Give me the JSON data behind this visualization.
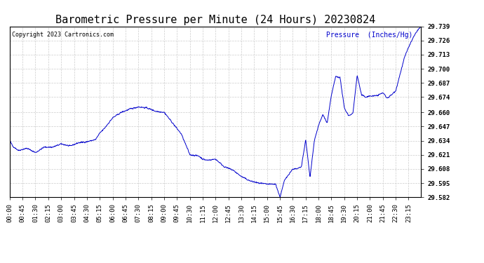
{
  "title": "Barometric Pressure per Minute (24 Hours) 20230824",
  "copyright": "Copyright 2023 Cartronics.com",
  "legend_label": "Pressure  (Inches/Hg)",
  "ylim": [
    29.582,
    29.739
  ],
  "yticks": [
    29.582,
    29.595,
    29.608,
    29.621,
    29.634,
    29.647,
    29.66,
    29.674,
    29.687,
    29.7,
    29.713,
    29.726,
    29.739
  ],
  "line_color": "#0000cc",
  "background_color": "#ffffff",
  "grid_color": "#cccccc",
  "title_fontsize": 11,
  "tick_fontsize": 6.5,
  "x_tick_labels": [
    "00:00",
    "00:45",
    "01:30",
    "02:15",
    "03:00",
    "03:45",
    "04:30",
    "05:15",
    "06:00",
    "06:45",
    "07:30",
    "08:15",
    "09:00",
    "09:45",
    "10:30",
    "11:15",
    "12:00",
    "12:45",
    "13:30",
    "14:15",
    "15:00",
    "15:45",
    "16:30",
    "17:15",
    "18:00",
    "18:45",
    "19:30",
    "20:15",
    "21:00",
    "21:45",
    "22:30",
    "23:15"
  ],
  "num_points": 1440,
  "key_minutes": [
    0,
    10,
    30,
    60,
    90,
    120,
    150,
    180,
    210,
    240,
    270,
    300,
    315,
    330,
    360,
    390,
    420,
    450,
    480,
    510,
    540,
    570,
    600,
    630,
    660,
    675,
    690,
    720,
    750,
    780,
    810,
    840,
    870,
    900,
    930,
    945,
    960,
    975,
    990,
    1005,
    1020,
    1035,
    1050,
    1065,
    1080,
    1095,
    1110,
    1125,
    1140,
    1155,
    1170,
    1185,
    1200,
    1215,
    1230,
    1245,
    1260,
    1275,
    1290,
    1305,
    1320,
    1335,
    1350,
    1365,
    1380,
    1395,
    1410,
    1425,
    1439
  ],
  "key_pressures": [
    29.634,
    29.629,
    29.625,
    29.627,
    29.623,
    29.628,
    29.628,
    29.631,
    29.629,
    29.632,
    29.633,
    29.635,
    29.641,
    29.645,
    29.655,
    29.66,
    29.663,
    29.665,
    29.664,
    29.661,
    29.66,
    29.65,
    29.64,
    29.621,
    29.62,
    29.617,
    29.616,
    29.617,
    29.61,
    29.607,
    29.601,
    29.597,
    29.595,
    29.594,
    29.594,
    29.582,
    29.597,
    29.603,
    29.608,
    29.608,
    29.61,
    29.635,
    29.6,
    29.634,
    29.648,
    29.658,
    29.65,
    29.676,
    29.693,
    29.692,
    29.664,
    29.657,
    29.659,
    29.694,
    29.676,
    29.674,
    29.675,
    29.675,
    29.676,
    29.678,
    29.673,
    29.676,
    29.68,
    29.695,
    29.71,
    29.72,
    29.728,
    29.735,
    29.739
  ]
}
